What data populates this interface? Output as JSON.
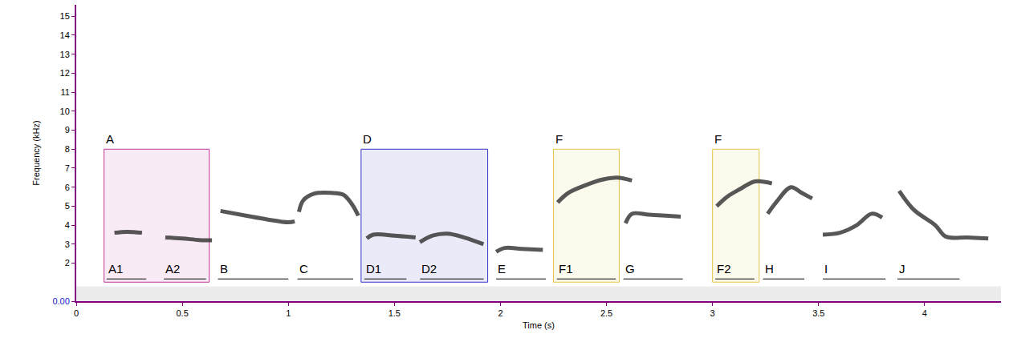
{
  "chart_data": {
    "type": "spectrogram",
    "x_label": "Time (s)",
    "y_label": "Frequency (kHz)",
    "xlim": [
      0,
      4.36
    ],
    "ylim": [
      0,
      15.6
    ],
    "xticks": [
      0,
      0.5,
      1,
      1.5,
      2,
      2.5,
      3,
      3.5,
      4
    ],
    "yticks": [
      {
        "value": 0,
        "label": "0.00"
      },
      2,
      3,
      4,
      5,
      6,
      7,
      8,
      9,
      10,
      11,
      12,
      13,
      14,
      15
    ],
    "grid": false,
    "color": "#3a3a3a",
    "syllables": [
      {
        "label": "A1",
        "start": 0.143,
        "end": 0.33,
        "x": [
          0.18,
          0.24,
          0.31
        ],
        "y": [
          3.6,
          3.65,
          3.6
        ]
      },
      {
        "label": "A2",
        "start": 0.413,
        "end": 0.612,
        "x": [
          0.42,
          0.5,
          0.58,
          0.64
        ],
        "y": [
          3.35,
          3.3,
          3.22,
          3.2
        ]
      },
      {
        "label": "B",
        "start": 0.668,
        "end": 1.0,
        "x": [
          0.68,
          0.8,
          0.9,
          1.0,
          1.03
        ],
        "y": [
          4.75,
          4.5,
          4.3,
          4.15,
          4.2
        ]
      },
      {
        "label": "C",
        "start": 1.043,
        "end": 1.306,
        "x": [
          1.05,
          1.07,
          1.12,
          1.2,
          1.26,
          1.3,
          1.33
        ],
        "y": [
          4.7,
          5.3,
          5.65,
          5.7,
          5.6,
          5.1,
          4.5
        ]
      },
      {
        "label": "D1",
        "start": 1.358,
        "end": 1.557,
        "x": [
          1.37,
          1.4,
          1.5,
          1.6
        ],
        "y": [
          3.3,
          3.5,
          3.45,
          3.35
        ]
      },
      {
        "label": "D2",
        "start": 1.621,
        "end": 1.921,
        "x": [
          1.62,
          1.68,
          1.75,
          1.83,
          1.92
        ],
        "y": [
          3.1,
          3.45,
          3.55,
          3.35,
          3.0
        ]
      },
      {
        "label": "E",
        "start": 1.98,
        "end": 2.214,
        "x": [
          1.98,
          2.02,
          2.1,
          2.2
        ],
        "y": [
          2.6,
          2.8,
          2.75,
          2.7
        ]
      },
      {
        "label": "F1",
        "start": 2.266,
        "end": 2.544,
        "x": [
          2.27,
          2.32,
          2.4,
          2.48,
          2.55,
          2.62
        ],
        "y": [
          5.2,
          5.7,
          6.1,
          6.4,
          6.5,
          6.35
        ]
      },
      {
        "label": "G",
        "start": 2.58,
        "end": 2.86,
        "x": [
          2.59,
          2.62,
          2.7,
          2.78,
          2.85
        ],
        "y": [
          4.1,
          4.6,
          4.55,
          4.5,
          4.45
        ]
      },
      {
        "label": "F2",
        "start": 3.013,
        "end": 3.197,
        "x": [
          3.02,
          3.07,
          3.13,
          3.2,
          3.28
        ],
        "y": [
          5.0,
          5.5,
          5.9,
          6.3,
          6.2
        ]
      },
      {
        "label": "H",
        "start": 3.238,
        "end": 3.433,
        "x": [
          3.26,
          3.3,
          3.37,
          3.42,
          3.47
        ],
        "y": [
          4.6,
          5.2,
          6.0,
          5.7,
          5.4
        ]
      },
      {
        "label": "I",
        "start": 3.52,
        "end": 3.816,
        "x": [
          3.52,
          3.6,
          3.68,
          3.75,
          3.8
        ],
        "y": [
          3.5,
          3.6,
          4.0,
          4.6,
          4.4
        ]
      },
      {
        "label": "J",
        "start": 3.872,
        "end": 4.165,
        "x": [
          3.88,
          3.95,
          4.05,
          4.1,
          4.2,
          4.3
        ],
        "y": [
          5.8,
          4.8,
          4.0,
          3.4,
          3.35,
          3.3
        ]
      }
    ],
    "boxes": [
      {
        "label": "A",
        "start": 0.131,
        "end": 0.627,
        "low": 1.0,
        "high": 8.0,
        "color": "#c0369a"
      },
      {
        "label": "D",
        "start": 1.343,
        "end": 1.94,
        "low": 1.0,
        "high": 8.0,
        "color": "#3535c8"
      },
      {
        "label": "F",
        "start": 2.25,
        "end": 2.56,
        "low": 1.0,
        "high": 8.0,
        "color": "#e6c54a"
      },
      {
        "label": "F",
        "start": 3.0,
        "end": 3.22,
        "low": 1.0,
        "high": 8.0,
        "color": "#e6c54a"
      }
    ]
  }
}
